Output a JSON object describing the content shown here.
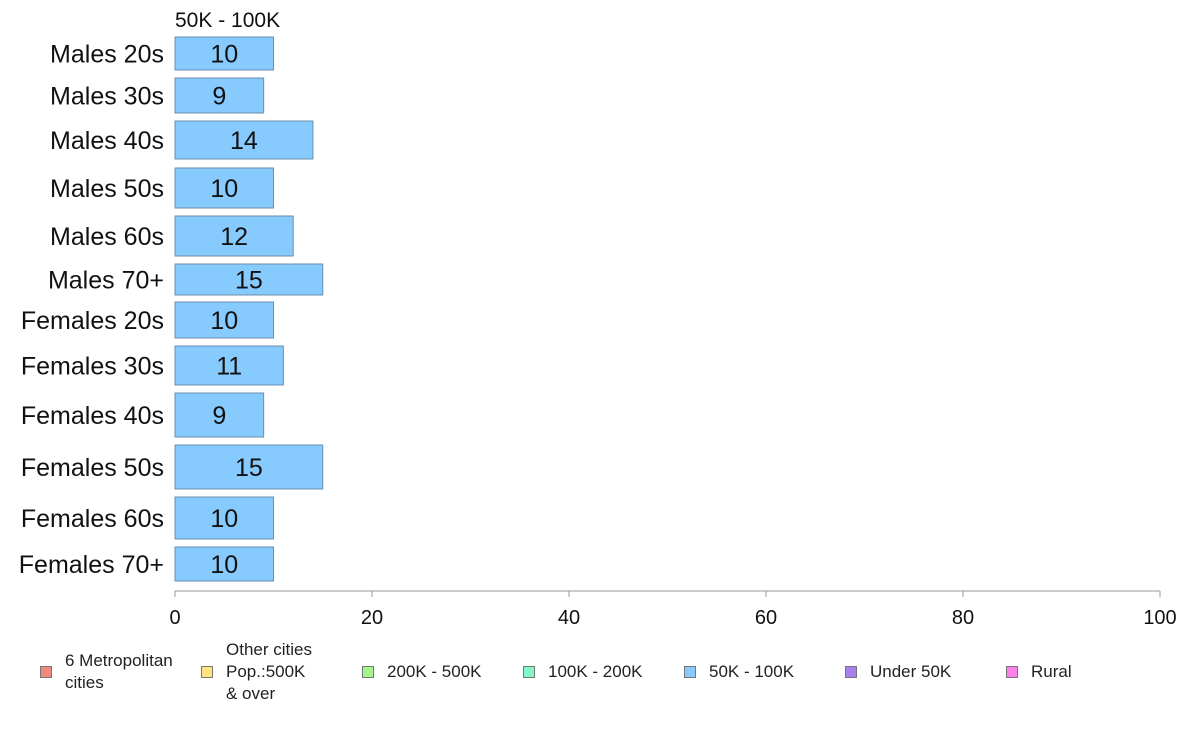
{
  "chart_data": {
    "type": "bar",
    "orientation": "horizontal",
    "title": "50K - 100K",
    "categories": [
      "Males 20s",
      "Males 30s",
      "Males 40s",
      "Males 50s",
      "Males 60s",
      "Males 70+",
      "Females 20s",
      "Females 30s",
      "Females 40s",
      "Females 50s",
      "Females 60s",
      "Females 70+"
    ],
    "values": [
      10,
      9,
      14,
      10,
      12,
      15,
      10,
      11,
      9,
      15,
      10,
      10
    ],
    "labels": [
      "10",
      "9",
      "14",
      "10",
      "12",
      "15",
      "10",
      "11",
      "9",
      "15",
      "10",
      "10"
    ],
    "xlim": [
      0,
      100
    ],
    "xticks": [
      "0",
      "20",
      "40",
      "60",
      "80",
      "100"
    ],
    "xtick_values": [
      0,
      20,
      40,
      60,
      80,
      100
    ],
    "bar_color": "#87cafe",
    "grid": false,
    "legend_position": "bottom",
    "legend": [
      {
        "label": "6 Metropolitan\n cities",
        "color": "#f08a80"
      },
      {
        "label": "Other cities\nPop.:500K\n & over",
        "color": "#fde57d"
      },
      {
        "label": "200K - 500K",
        "color": "#a6f58a"
      },
      {
        "label": "100K - 200K",
        "color": "#80f8c8"
      },
      {
        "label": "50K - 100K",
        "color": "#87cafe"
      },
      {
        "label": "Under 50K",
        "color": "#a880f0"
      },
      {
        "label": "Rural",
        "color": "#f880e8"
      }
    ]
  }
}
